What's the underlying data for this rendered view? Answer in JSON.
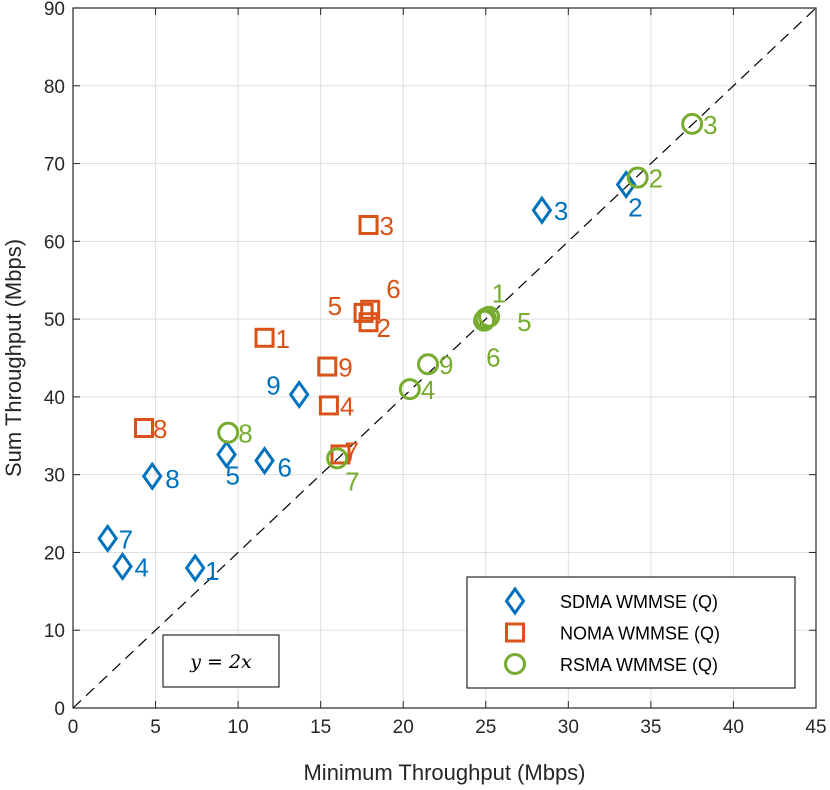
{
  "chart_data": {
    "type": "scatter",
    "xlabel": "Minimum Throughput (Mbps)",
    "ylabel": "Sum Throughput (Mbps)",
    "xlim": [
      0,
      45
    ],
    "ylim": [
      0,
      90
    ],
    "xticks": [
      0,
      5,
      10,
      15,
      20,
      25,
      30,
      35,
      40,
      45
    ],
    "yticks": [
      0,
      10,
      20,
      30,
      40,
      50,
      60,
      70,
      80,
      90
    ],
    "grid": true,
    "reference_line": {
      "label": "y = 2x",
      "slope": 2,
      "style": "dashed"
    },
    "annotation": "y = 2x",
    "legend_position": "bottom-right",
    "series": [
      {
        "name": "SDMA WMMSE (Q)",
        "marker": "diamond",
        "color": "#0072BD",
        "points": [
          {
            "id": "1",
            "x": 7.4,
            "y": 18.0
          },
          {
            "id": "2",
            "x": 33.5,
            "y": 67.3
          },
          {
            "id": "3",
            "x": 28.4,
            "y": 64.0
          },
          {
            "id": "4",
            "x": 3.0,
            "y": 18.2
          },
          {
            "id": "5",
            "x": 9.3,
            "y": 32.6
          },
          {
            "id": "6",
            "x": 11.6,
            "y": 31.8
          },
          {
            "id": "7",
            "x": 2.1,
            "y": 21.8
          },
          {
            "id": "8",
            "x": 4.8,
            "y": 29.8
          },
          {
            "id": "9",
            "x": 13.7,
            "y": 40.3
          }
        ]
      },
      {
        "name": "NOMA WMMSE (Q)",
        "marker": "square",
        "color": "#D95319",
        "points": [
          {
            "id": "1",
            "x": 11.6,
            "y": 47.6
          },
          {
            "id": "2",
            "x": 17.9,
            "y": 49.6
          },
          {
            "id": "3",
            "x": 17.9,
            "y": 62.1
          },
          {
            "id": "4",
            "x": 15.5,
            "y": 38.9
          },
          {
            "id": "5",
            "x": 17.6,
            "y": 50.8
          },
          {
            "id": "6",
            "x": 18.0,
            "y": 51.2
          },
          {
            "id": "7",
            "x": 16.2,
            "y": 32.6
          },
          {
            "id": "8",
            "x": 4.3,
            "y": 36.0
          },
          {
            "id": "9",
            "x": 15.4,
            "y": 43.9
          }
        ]
      },
      {
        "name": "RSMA WMMSE (Q)",
        "marker": "circle",
        "color": "#77AC30",
        "points": [
          {
            "id": "1",
            "x": 25.0,
            "y": 50.1
          },
          {
            "id": "2",
            "x": 34.2,
            "y": 68.2
          },
          {
            "id": "3",
            "x": 37.5,
            "y": 75.1
          },
          {
            "id": "4",
            "x": 20.4,
            "y": 41.0
          },
          {
            "id": "5",
            "x": 25.2,
            "y": 50.3
          },
          {
            "id": "6",
            "x": 24.9,
            "y": 49.8
          },
          {
            "id": "7",
            "x": 16.0,
            "y": 32.1
          },
          {
            "id": "8",
            "x": 9.4,
            "y": 35.4
          },
          {
            "id": "9",
            "x": 21.5,
            "y": 44.2
          }
        ]
      }
    ]
  }
}
